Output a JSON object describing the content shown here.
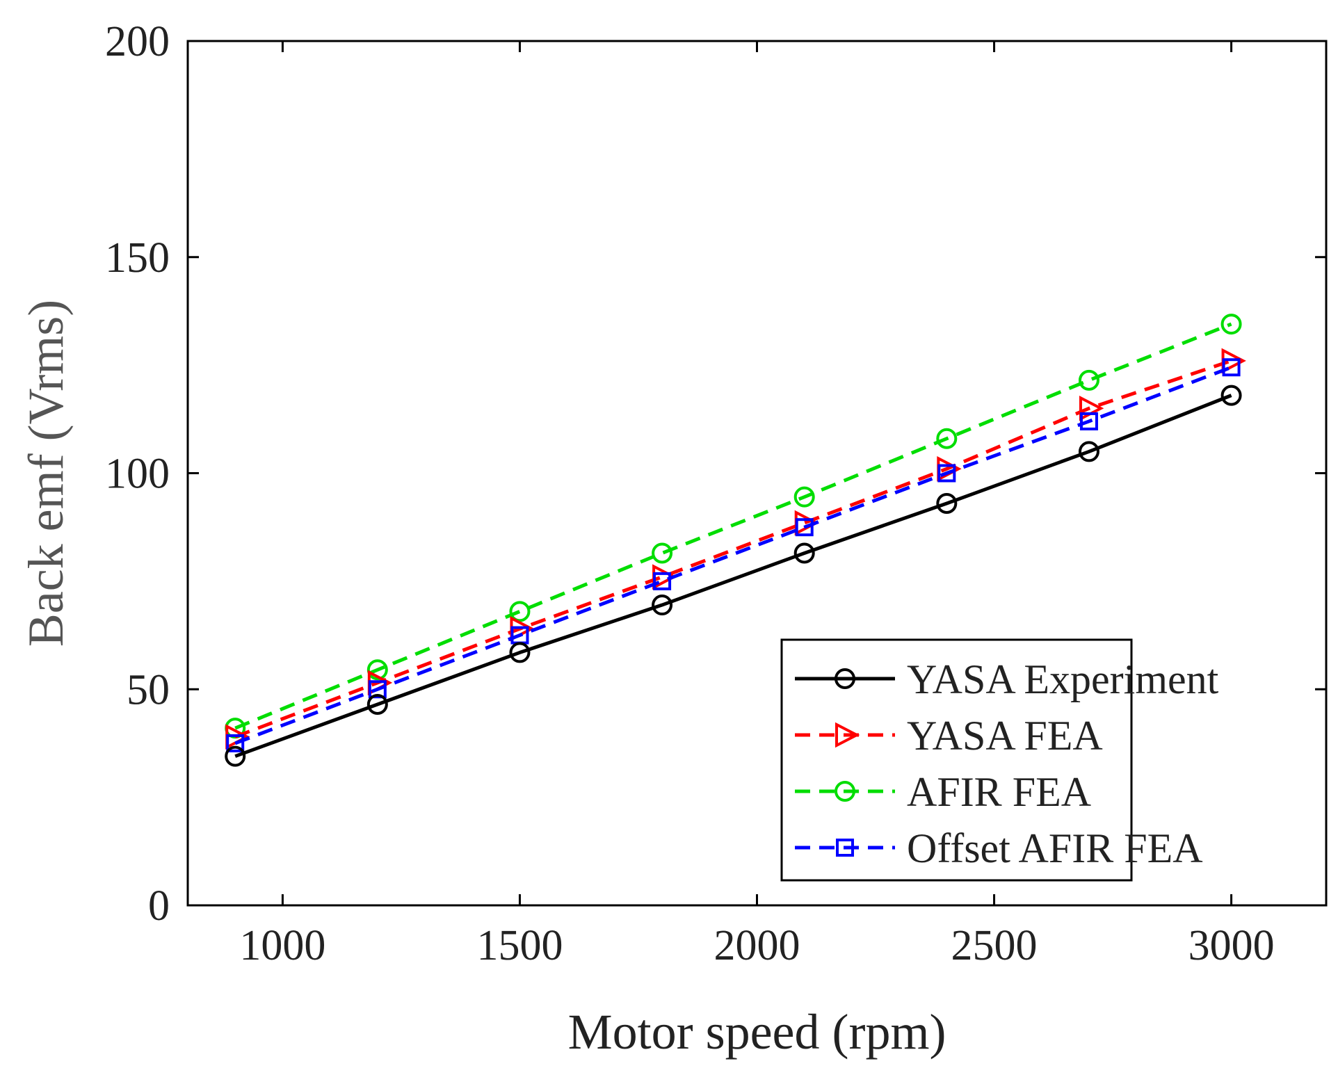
{
  "chart_data": {
    "type": "line",
    "title": "",
    "xlabel": "Motor speed (rpm)",
    "ylabel": "Back emf (Vrms)",
    "xlim": [
      800,
      3200
    ],
    "ylim": [
      0,
      200
    ],
    "xticks": [
      1000,
      1500,
      2000,
      2500,
      3000
    ],
    "yticks": [
      0,
      50,
      100,
      150,
      200
    ],
    "grid": false,
    "legend_position": "bottom-right",
    "x": [
      900,
      1200,
      1500,
      1800,
      2100,
      2400,
      2700,
      3000
    ],
    "series": [
      {
        "name": "YASA Experiment",
        "color": "#000000",
        "dash": "solid",
        "marker": "circle",
        "values": [
          34.5,
          46.5,
          58.5,
          69.5,
          81.5,
          93,
          105,
          118
        ]
      },
      {
        "name": "YASA FEA",
        "color": "#ff0000",
        "dash": "dashed",
        "marker": "triangle-right",
        "values": [
          39,
          51.5,
          64,
          76,
          88.5,
          101,
          115,
          126
        ]
      },
      {
        "name": "AFIR FEA",
        "color": "#00dd00",
        "dash": "dashed",
        "marker": "circle",
        "values": [
          41,
          54.5,
          68,
          81.5,
          94.5,
          108,
          121.5,
          134.5
        ]
      },
      {
        "name": "Offset AFIR FEA",
        "color": "#0000ff",
        "dash": "dashed",
        "marker": "square",
        "values": [
          37.5,
          50,
          62.5,
          75,
          87.5,
          100,
          112,
          124.5
        ]
      }
    ]
  }
}
